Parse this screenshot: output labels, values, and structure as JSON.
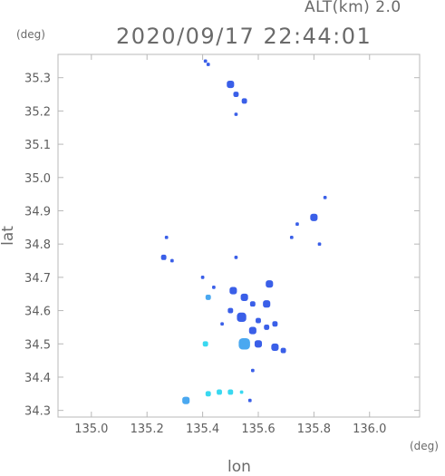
{
  "header": {
    "alt_label": "ALT(km)  2.0",
    "datetime": "2020/09/17 22:44:01"
  },
  "units": {
    "y_unit": "(deg)",
    "x_unit": "(deg)"
  },
  "axes": {
    "xlabel": "lon",
    "ylabel": "lat"
  },
  "colors": {
    "frame": "#b8b8b8",
    "echo_blue": "#3a5fe8",
    "echo_light": "#4aa8f0",
    "echo_cyan": "#39d8f0"
  },
  "chart_data": {
    "type": "scatter",
    "title": "2020/09/17 22:44:01",
    "xlabel": "lon",
    "ylabel": "lat",
    "xlim": [
      134.88,
      136.18
    ],
    "ylim": [
      34.28,
      35.37
    ],
    "x_ticks": [
      "135.0",
      "135.2",
      "135.4",
      "135.6",
      "135.8",
      "136.0"
    ],
    "x_tick_values": [
      135.0,
      135.2,
      135.4,
      135.6,
      135.8,
      136.0
    ],
    "y_ticks": [
      "34.3",
      "34.4",
      "34.5",
      "34.6",
      "34.7",
      "34.8",
      "34.9",
      "35.0",
      "35.1",
      "35.2",
      "35.3"
    ],
    "y_tick_values": [
      34.3,
      34.4,
      34.5,
      34.6,
      34.7,
      34.8,
      34.9,
      35.0,
      35.1,
      35.2,
      35.3
    ],
    "grid": false,
    "echoes": [
      {
        "lon": 135.41,
        "lat": 35.35,
        "size": 1,
        "level": "blue"
      },
      {
        "lon": 135.42,
        "lat": 35.34,
        "size": 1,
        "level": "blue"
      },
      {
        "lon": 135.5,
        "lat": 35.28,
        "size": 3,
        "level": "blue"
      },
      {
        "lon": 135.52,
        "lat": 35.25,
        "size": 2,
        "level": "blue"
      },
      {
        "lon": 135.55,
        "lat": 35.23,
        "size": 2,
        "level": "blue"
      },
      {
        "lon": 135.52,
        "lat": 35.19,
        "size": 1,
        "level": "blue"
      },
      {
        "lon": 135.84,
        "lat": 34.94,
        "size": 1,
        "level": "blue"
      },
      {
        "lon": 135.8,
        "lat": 34.88,
        "size": 3,
        "level": "blue"
      },
      {
        "lon": 135.74,
        "lat": 34.86,
        "size": 1,
        "level": "blue"
      },
      {
        "lon": 135.72,
        "lat": 34.82,
        "size": 1,
        "level": "blue"
      },
      {
        "lon": 135.82,
        "lat": 34.8,
        "size": 1,
        "level": "blue"
      },
      {
        "lon": 135.26,
        "lat": 34.76,
        "size": 2,
        "level": "blue"
      },
      {
        "lon": 135.29,
        "lat": 34.75,
        "size": 1,
        "level": "blue"
      },
      {
        "lon": 135.27,
        "lat": 34.82,
        "size": 1,
        "level": "blue"
      },
      {
        "lon": 135.52,
        "lat": 34.76,
        "size": 1,
        "level": "blue"
      },
      {
        "lon": 135.64,
        "lat": 34.68,
        "size": 3,
        "level": "blue"
      },
      {
        "lon": 135.51,
        "lat": 34.66,
        "size": 3,
        "level": "blue"
      },
      {
        "lon": 135.55,
        "lat": 34.64,
        "size": 3,
        "level": "blue"
      },
      {
        "lon": 135.58,
        "lat": 34.62,
        "size": 2,
        "level": "blue"
      },
      {
        "lon": 135.63,
        "lat": 34.62,
        "size": 3,
        "level": "blue"
      },
      {
        "lon": 135.5,
        "lat": 34.6,
        "size": 2,
        "level": "blue"
      },
      {
        "lon": 135.54,
        "lat": 34.58,
        "size": 4,
        "level": "blue"
      },
      {
        "lon": 135.6,
        "lat": 34.57,
        "size": 2,
        "level": "blue"
      },
      {
        "lon": 135.66,
        "lat": 34.56,
        "size": 2,
        "level": "blue"
      },
      {
        "lon": 135.47,
        "lat": 34.56,
        "size": 1,
        "level": "blue"
      },
      {
        "lon": 135.58,
        "lat": 34.54,
        "size": 3,
        "level": "blue"
      },
      {
        "lon": 135.63,
        "lat": 34.55,
        "size": 2,
        "level": "blue"
      },
      {
        "lon": 135.55,
        "lat": 34.5,
        "size": 5,
        "level": "light"
      },
      {
        "lon": 135.6,
        "lat": 34.5,
        "size": 3,
        "level": "blue"
      },
      {
        "lon": 135.66,
        "lat": 34.49,
        "size": 3,
        "level": "blue"
      },
      {
        "lon": 135.69,
        "lat": 34.48,
        "size": 2,
        "level": "blue"
      },
      {
        "lon": 135.41,
        "lat": 34.5,
        "size": 2,
        "level": "cyan"
      },
      {
        "lon": 135.42,
        "lat": 34.64,
        "size": 2,
        "level": "light"
      },
      {
        "lon": 135.44,
        "lat": 34.67,
        "size": 1,
        "level": "blue"
      },
      {
        "lon": 135.4,
        "lat": 34.7,
        "size": 1,
        "level": "blue"
      },
      {
        "lon": 135.58,
        "lat": 34.42,
        "size": 1,
        "level": "blue"
      },
      {
        "lon": 135.34,
        "lat": 34.33,
        "size": 3,
        "level": "light"
      },
      {
        "lon": 135.42,
        "lat": 34.35,
        "size": 2,
        "level": "cyan"
      },
      {
        "lon": 135.46,
        "lat": 34.355,
        "size": 2,
        "level": "cyan"
      },
      {
        "lon": 135.5,
        "lat": 34.355,
        "size": 2,
        "level": "cyan"
      },
      {
        "lon": 135.54,
        "lat": 34.355,
        "size": 1,
        "level": "cyan"
      },
      {
        "lon": 135.57,
        "lat": 34.33,
        "size": 1,
        "level": "blue"
      }
    ]
  }
}
